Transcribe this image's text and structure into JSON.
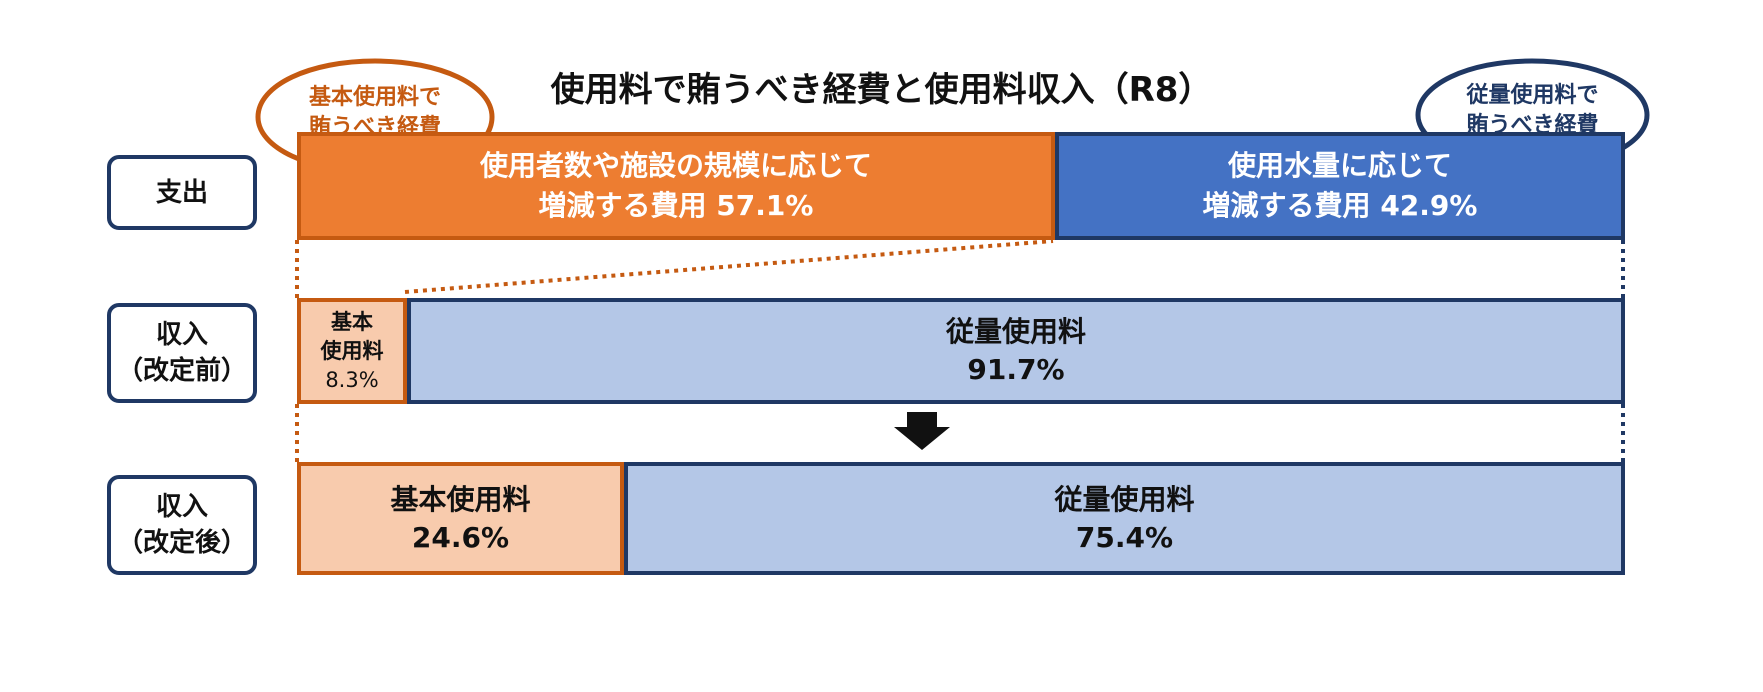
{
  "title": "使用料で賄うべき経費と使用料収入（R8）",
  "colors": {
    "orange": "#ed7d31",
    "orange_dark": "#c55a11",
    "blue": "#4472c4",
    "navy": "#1f3864",
    "peach": "#f8cbad",
    "light_blue": "#b4c7e7"
  },
  "bubbles": {
    "left": "基本使用料で\n賄うべき経費",
    "right": "従量使用料で\n賄うべき経費"
  },
  "row_labels": {
    "expense": "支出",
    "revenue_before": "収入\n（改定前）",
    "revenue_after": "収入\n（改定後）"
  },
  "chart_data": {
    "type": "bar",
    "orientation": "horizontal-stacked-100",
    "title": "使用料で賄うべき経費と使用料収入（R8）",
    "unit": "%",
    "rows": [
      {
        "name": "支出",
        "segments": [
          {
            "label": "使用者数や施設の規模に応じて\n増減する費用",
            "value": 57.1,
            "value_text": "57.1%"
          },
          {
            "label": "使用水量に応じて\n増減する費用",
            "value": 42.9,
            "value_text": "42.9%"
          }
        ]
      },
      {
        "name": "収入（改定前）",
        "segments": [
          {
            "label": "基本\n使用料",
            "value": 8.3,
            "value_text": "8.3%"
          },
          {
            "label": "従量使用料",
            "value": 91.7,
            "value_text": "91.7%"
          }
        ]
      },
      {
        "name": "収入（改定後）",
        "segments": [
          {
            "label": "基本使用料",
            "value": 24.6,
            "value_text": "24.6%"
          },
          {
            "label": "従量使用料",
            "value": 75.4,
            "value_text": "75.4%"
          }
        ]
      }
    ]
  }
}
